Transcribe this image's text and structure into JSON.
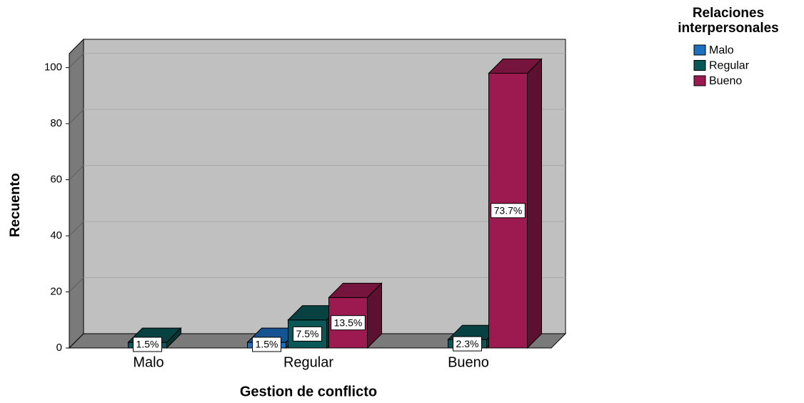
{
  "chart_data": {
    "type": "bar3d",
    "x_label": "Gestion de conflicto",
    "y_label": "Recuento",
    "categories": [
      "Malo",
      "Regular",
      "Bueno"
    ],
    "legend_title": "Relaciones interpersonales",
    "series": [
      {
        "name": "Malo",
        "color": "#1f6fc0",
        "values": [
          null,
          2,
          null
        ],
        "value_labels": [
          null,
          "1.5%",
          null
        ]
      },
      {
        "name": "Regular",
        "color": "#0b5656",
        "values": [
          2,
          10,
          3
        ],
        "value_labels": [
          "1.5%",
          "7.5%",
          "2.3%"
        ]
      },
      {
        "name": "Bueno",
        "color": "#9c1a50",
        "values": [
          null,
          18,
          98
        ],
        "value_labels": [
          null,
          "13.5%",
          "73.7%"
        ]
      }
    ],
    "ylim": [
      0,
      105
    ],
    "yticks": [
      0,
      20,
      40,
      60,
      80,
      100
    ],
    "grid": true,
    "legend": "top-right"
  }
}
